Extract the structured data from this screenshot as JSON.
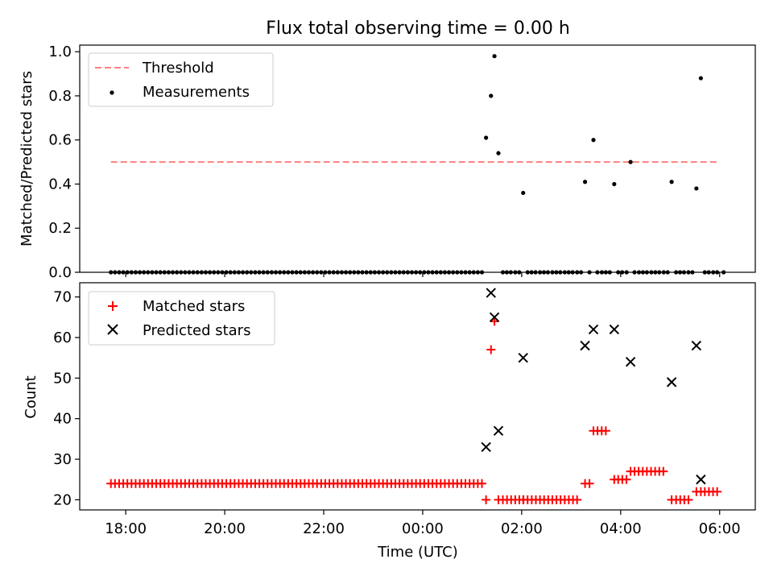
{
  "title": "Flux total observing time = 0.00 h",
  "colors": {
    "threshold": "#ff7f7f",
    "measurement": "#000000",
    "matched": "#ff0000",
    "predicted": "#000000"
  },
  "chart_data": [
    {
      "type": "scatter",
      "ylabel": "Matched/Predicted stars",
      "xlabel": "",
      "xlim_hours": [
        17.07,
        30.72
      ],
      "ylim": [
        0.0,
        1.03
      ],
      "yticks": [
        0.0,
        0.2,
        0.4,
        0.6,
        0.8,
        1.0
      ],
      "ytick_labels": [
        "0.0",
        "0.2",
        "0.4",
        "0.6",
        "0.8",
        "1.0"
      ],
      "legend": {
        "position": "top-left",
        "entries": [
          "Threshold",
          "Measurements"
        ]
      },
      "threshold": {
        "name": "Threshold",
        "y": 0.5,
        "x_range_hours": [
          17.7,
          30.0
        ]
      },
      "measurements": {
        "name": "Measurements",
        "zero_run_hours": [
          17.7,
          25.2
        ],
        "zero_run_step": 0.0833,
        "points": [
          {
            "x": 25.28,
            "y": 0.61
          },
          {
            "x": 25.38,
            "y": 0.8
          },
          {
            "x": 25.45,
            "y": 0.98
          },
          {
            "x": 25.53,
            "y": 0.54
          },
          {
            "x": 26.03,
            "y": 0.36
          },
          {
            "x": 27.28,
            "y": 0.41
          },
          {
            "x": 27.45,
            "y": 0.6
          },
          {
            "x": 27.87,
            "y": 0.4
          },
          {
            "x": 28.2,
            "y": 0.5
          },
          {
            "x": 29.03,
            "y": 0.41
          },
          {
            "x": 29.53,
            "y": 0.38
          },
          {
            "x": 29.62,
            "y": 0.88
          }
        ],
        "zero_points_hours": [
          25.62,
          25.7,
          25.78,
          25.87,
          25.95,
          26.12,
          26.2,
          26.28,
          26.37,
          26.45,
          26.53,
          26.62,
          26.7,
          26.78,
          26.87,
          26.95,
          27.03,
          27.12,
          27.2,
          27.37,
          27.53,
          27.62,
          27.7,
          27.78,
          27.95,
          28.03,
          28.12,
          28.28,
          28.37,
          28.45,
          28.53,
          28.62,
          28.7,
          28.78,
          28.87,
          28.95,
          29.12,
          29.2,
          29.28,
          29.37,
          29.45,
          29.7,
          29.78,
          29.87,
          29.95,
          30.08
        ]
      }
    },
    {
      "type": "scatter",
      "ylabel": "Count",
      "xlabel": "Time (UTC)",
      "xlim_hours": [
        17.07,
        30.72
      ],
      "ylim": [
        17.5,
        73.5
      ],
      "yticks": [
        20,
        30,
        40,
        50,
        60,
        70
      ],
      "ytick_labels": [
        "20",
        "30",
        "40",
        "50",
        "60",
        "70"
      ],
      "xticks_hours": [
        18,
        20,
        22,
        24,
        26,
        28,
        30
      ],
      "xtick_labels": [
        "18:00",
        "20:00",
        "22:00",
        "00:00",
        "02:00",
        "04:00",
        "06:00"
      ],
      "legend": {
        "position": "top-left",
        "entries": [
          "Matched stars",
          "Predicted stars"
        ]
      },
      "matched": {
        "name": "Matched stars",
        "runs": [
          {
            "from": 17.7,
            "to": 25.2,
            "y": 24
          },
          {
            "from": 25.62,
            "to": 27.2,
            "y": 20
          },
          {
            "from": 27.45,
            "to": 27.78,
            "y": 37
          },
          {
            "from": 27.95,
            "to": 28.12,
            "y": 25
          },
          {
            "from": 28.28,
            "to": 28.87,
            "y": 27
          },
          {
            "from": 29.12,
            "to": 29.45,
            "y": 20
          },
          {
            "from": 29.7,
            "to": 30.03,
            "y": 22
          }
        ],
        "points": [
          {
            "x": 25.28,
            "y": 20
          },
          {
            "x": 25.38,
            "y": 57
          },
          {
            "x": 25.45,
            "y": 64
          },
          {
            "x": 25.53,
            "y": 20
          },
          {
            "x": 26.03,
            "y": 20
          },
          {
            "x": 27.28,
            "y": 24
          },
          {
            "x": 27.37,
            "y": 24
          },
          {
            "x": 27.87,
            "y": 25
          },
          {
            "x": 28.2,
            "y": 27
          },
          {
            "x": 29.03,
            "y": 20
          },
          {
            "x": 29.53,
            "y": 22
          },
          {
            "x": 29.62,
            "y": 22
          }
        ]
      },
      "predicted": {
        "name": "Predicted stars",
        "points": [
          {
            "x": 25.28,
            "y": 33
          },
          {
            "x": 25.38,
            "y": 71
          },
          {
            "x": 25.45,
            "y": 65
          },
          {
            "x": 25.53,
            "y": 37
          },
          {
            "x": 26.03,
            "y": 55
          },
          {
            "x": 27.28,
            "y": 58
          },
          {
            "x": 27.45,
            "y": 62
          },
          {
            "x": 27.87,
            "y": 62
          },
          {
            "x": 28.2,
            "y": 54
          },
          {
            "x": 29.03,
            "y": 49
          },
          {
            "x": 29.53,
            "y": 58
          },
          {
            "x": 29.62,
            "y": 25
          }
        ]
      }
    }
  ]
}
